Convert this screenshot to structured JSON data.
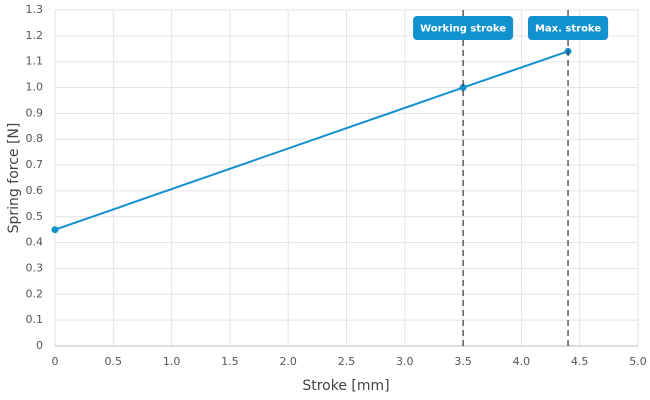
{
  "chart_data": {
    "type": "line",
    "x_label": "Stroke [mm]",
    "y_label": "Spring force [N]",
    "x": [
      0,
      3.5,
      4.4
    ],
    "values": [
      0.45,
      1.0,
      1.14
    ],
    "color": "#1192cf",
    "xlim": [
      0,
      5
    ],
    "xticks": [
      0,
      0.5,
      {
        "value": 1,
        "label": "1.0"
      },
      1.5,
      {
        "value": 2,
        "label": "2.0"
      },
      2.5,
      {
        "value": 3,
        "label": "3.0"
      },
      3.5,
      {
        "value": 4,
        "label": "4.0"
      },
      4.5,
      {
        "value": 5,
        "label": "5.0"
      }
    ],
    "ylim": [
      0,
      1.3
    ],
    "yticks": [
      0,
      0.1,
      0.2,
      0.3,
      0.4,
      0.5,
      0.6,
      0.7,
      0.8,
      0.9,
      {
        "value": 1,
        "label": "1.0"
      },
      1.1,
      1.2,
      1.3
    ],
    "grid": true,
    "annotations": [
      {
        "x": 3.5,
        "label": "Working stroke"
      },
      {
        "x": 4.4,
        "label": "Max. stroke"
      }
    ]
  }
}
